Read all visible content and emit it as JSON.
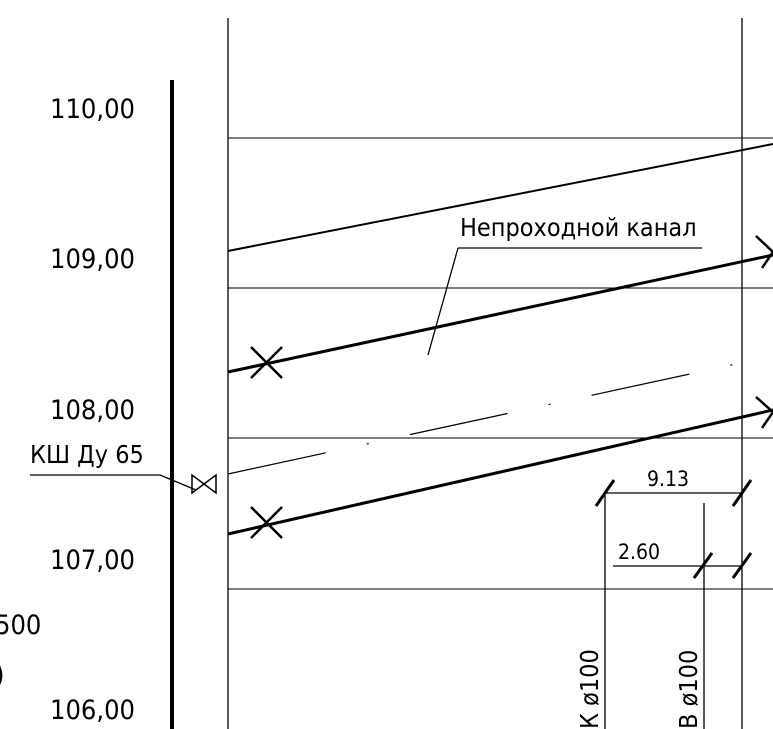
{
  "drawing": {
    "elevation_scale": [
      {
        "label": "110,00",
        "value": 110.0
      },
      {
        "label": "109,00",
        "value": 109.0
      },
      {
        "label": "108,00",
        "value": 108.0
      },
      {
        "label": "107,00",
        "value": 107.0
      },
      {
        "label": "106,00",
        "value": 106.0
      }
    ],
    "labels": {
      "channel": "Непроходной канал",
      "valve": "КШ Ду 65"
    },
    "dimensions": {
      "upper": "9.13",
      "lower": "2.60"
    },
    "pipes": {
      "left": "К ø100",
      "right": "В ø100"
    },
    "cut_off_text": {
      "row1": "500",
      "row2": ")"
    }
  }
}
